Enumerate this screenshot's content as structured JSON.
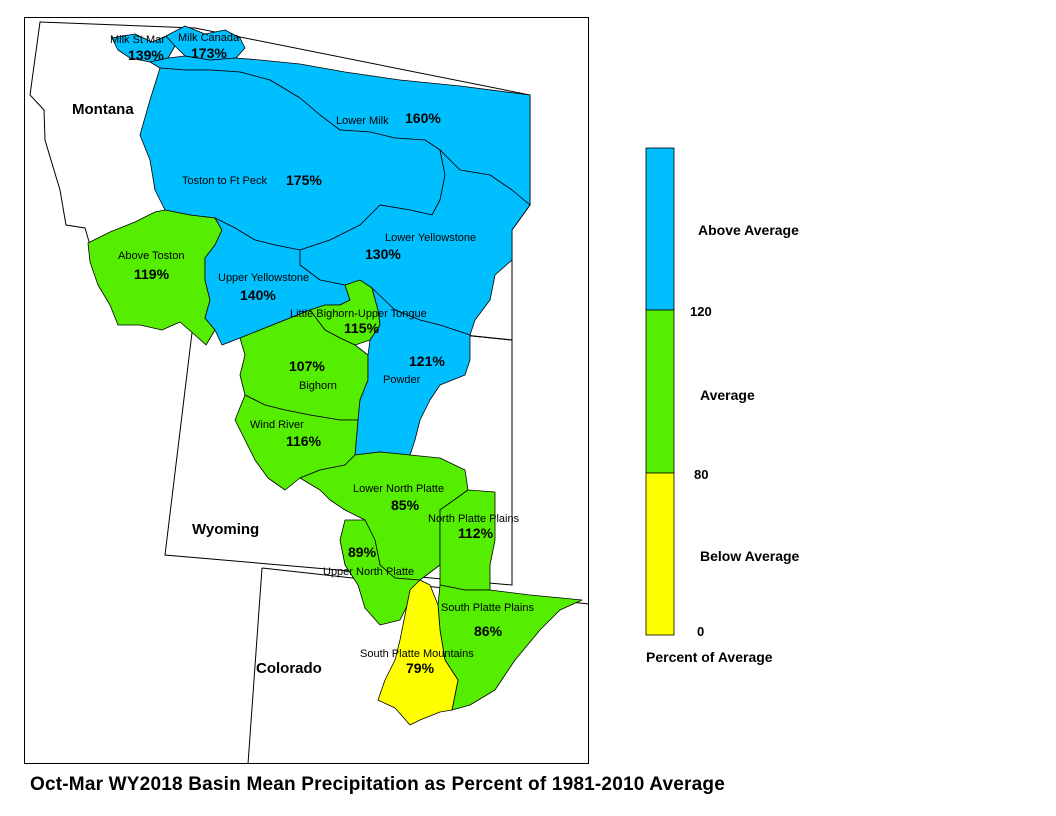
{
  "title": "Oct-Mar WY2018 Basin Mean Precipitation as Percent of 1981-2010 Average",
  "colors": {
    "above": "#00BFFF",
    "average": "#55EE00",
    "below": "#FFFF00",
    "border": "#000000"
  },
  "states": {
    "montana": "Montana",
    "wyoming": "Wyoming",
    "colorado": "Colorado"
  },
  "basins": [
    {
      "name": "Milk St Mary",
      "display": "Milk St Mar",
      "percent": "139%",
      "category": "above"
    },
    {
      "name": "Milk Canada",
      "display": "Milk Canada",
      "percent": "173%",
      "category": "above"
    },
    {
      "name": "Lower Milk",
      "display": "Lower Milk",
      "percent": "160%",
      "category": "above"
    },
    {
      "name": "Toston to Ft Peck",
      "display": "Toston to Ft Peck",
      "percent": "175%",
      "category": "above"
    },
    {
      "name": "Lower Yellowstone",
      "display": "Lower Yellowstone",
      "percent": "130%",
      "category": "above"
    },
    {
      "name": "Above Toston",
      "display": "Above Toston",
      "percent": "119%",
      "category": "average"
    },
    {
      "name": "Upper Yellowstone",
      "display": "Upper Yellowstone",
      "percent": "140%",
      "category": "above"
    },
    {
      "name": "Little Bighorn-Upper Tongue",
      "display": "Little Bighorn-Upper Tongue",
      "percent": "115%",
      "category": "average"
    },
    {
      "name": "Bighorn",
      "display": "Bighorn",
      "percent": "107%",
      "category": "average"
    },
    {
      "name": "Powder",
      "display": "Powder",
      "percent": "121%",
      "category": "above"
    },
    {
      "name": "Wind River",
      "display": "Wind River",
      "percent": "116%",
      "category": "average"
    },
    {
      "name": "Lower North Platte",
      "display": "Lower North Platte",
      "percent": "85%",
      "category": "average"
    },
    {
      "name": "North Platte Plains",
      "display": "North Platte Plains",
      "percent": "112%",
      "category": "average"
    },
    {
      "name": "Upper North Platte",
      "display": "Upper North Platte",
      "percent": "89%",
      "category": "average"
    },
    {
      "name": "South Platte Plains",
      "display": "South Platte Plains",
      "percent": "86%",
      "category": "average"
    },
    {
      "name": "South Platte Mountains",
      "display": "South Platte Mountains",
      "percent": "79%",
      "category": "below"
    }
  ],
  "legend": {
    "title": "Percent of Average",
    "classes": [
      {
        "label": "Above Average",
        "category": "above"
      },
      {
        "label": "Average",
        "category": "average"
      },
      {
        "label": "Below Average",
        "category": "below"
      }
    ],
    "ticks": [
      "120",
      "80",
      "0"
    ]
  }
}
